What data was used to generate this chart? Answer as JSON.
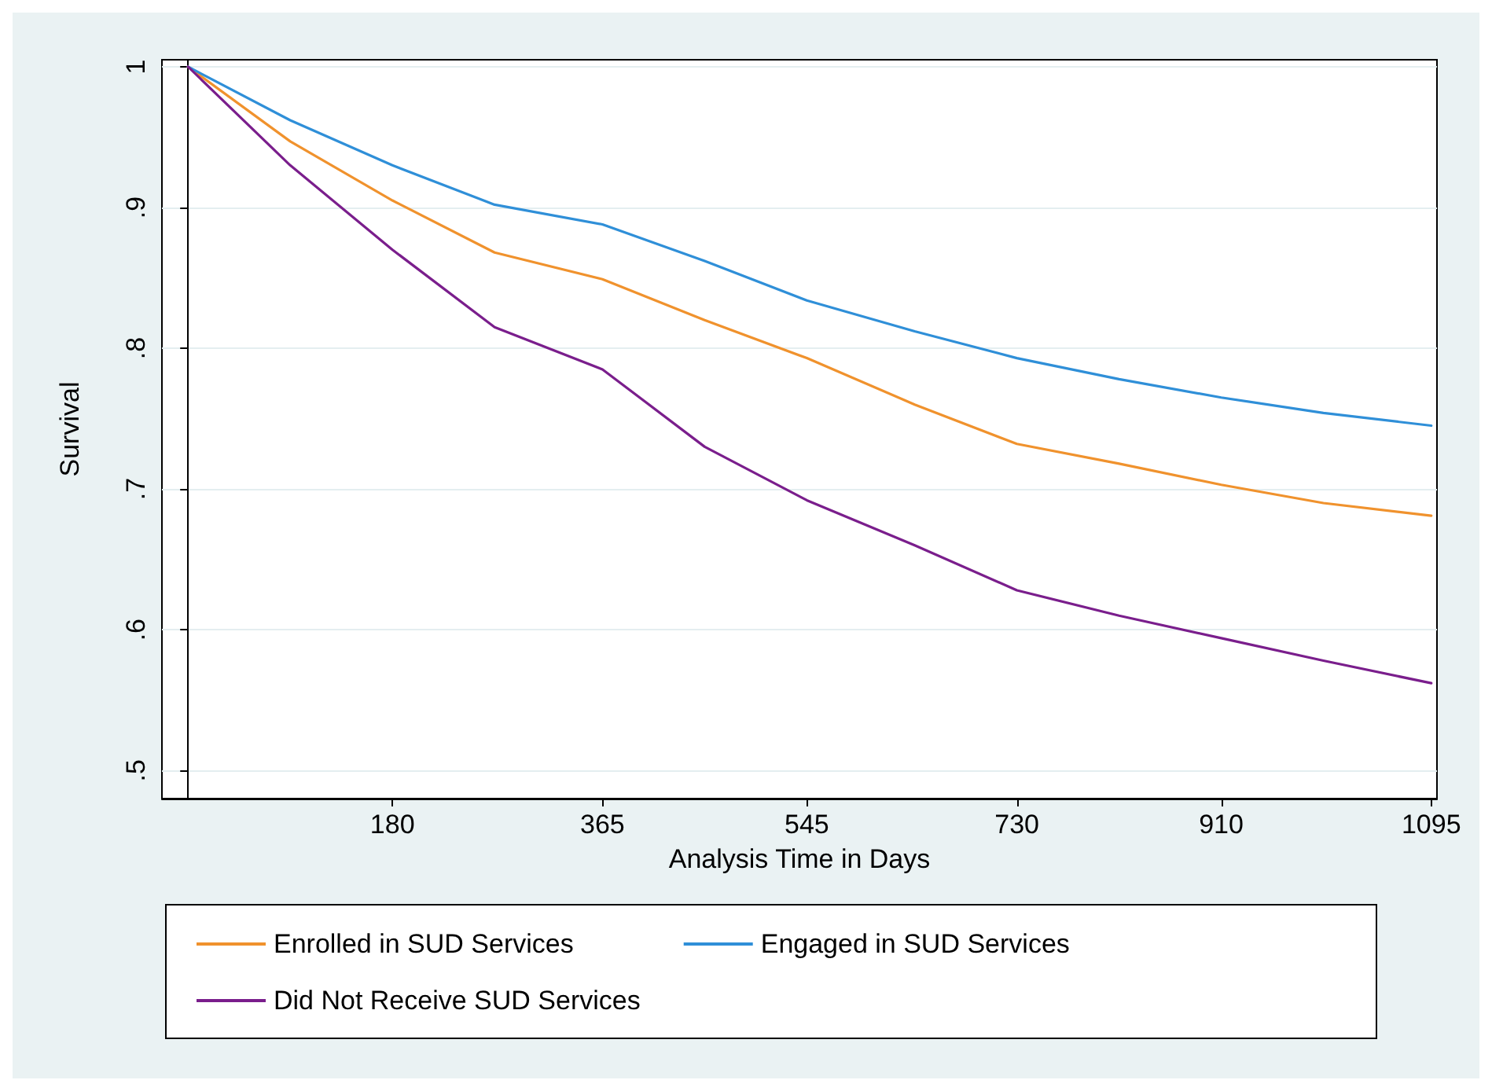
{
  "chart_data": {
    "type": "line",
    "xlabel": "Analysis Time in Days",
    "ylabel": "Survival",
    "xlim": [
      -23,
      1100
    ],
    "xticks": [
      180,
      365,
      545,
      730,
      910,
      1095
    ],
    "ylim": [
      0.48,
      1.005
    ],
    "yticks": [
      {
        "value": 0.5,
        "label": ".5"
      },
      {
        "value": 0.6,
        "label": ".6"
      },
      {
        "value": 0.7,
        "label": ".7"
      },
      {
        "value": 0.8,
        "label": ".8"
      },
      {
        "value": 0.9,
        "label": ".9"
      },
      {
        "value": 1,
        "label": "1"
      }
    ],
    "grid": "y",
    "legend": "bottom",
    "marker": "none",
    "line_style": "solid",
    "x": [
      0,
      90,
      180,
      270,
      365,
      455,
      545,
      640,
      730,
      820,
      910,
      1000,
      1095
    ],
    "series": [
      {
        "name": "Enrolled in SUD Services",
        "color": "#f0922d",
        "values": [
          1,
          0.947,
          0.905,
          0.868,
          0.849,
          0.82,
          0.793,
          0.76,
          0.732,
          0.718,
          0.703,
          0.69,
          0.681
        ]
      },
      {
        "name": "Engaged in SUD Services",
        "color": "#2f8fd8",
        "values": [
          1,
          0.962,
          0.93,
          0.902,
          0.888,
          0.862,
          0.834,
          0.812,
          0.793,
          0.778,
          0.765,
          0.754,
          0.745
        ]
      },
      {
        "name": "Did Not Receive SUD Services",
        "color": "#7a1e8c",
        "values": [
          1,
          0.93,
          0.87,
          0.815,
          0.785,
          0.73,
          0.692,
          0.66,
          0.628,
          0.61,
          0.594,
          0.578,
          0.562
        ]
      }
    ]
  }
}
